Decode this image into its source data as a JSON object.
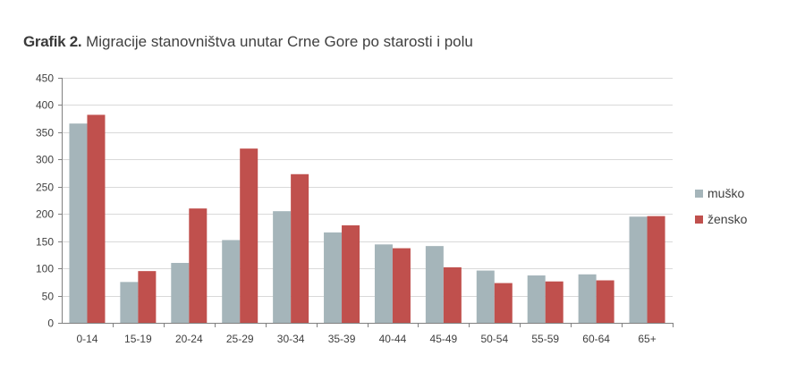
{
  "chart_data": {
    "type": "bar",
    "title_lead": "Grafik 2.",
    "title": "Migracije stanovništva unutar Crne Gore po starosti i polu",
    "xlabel": "",
    "ylabel": "",
    "categories": [
      "0-14",
      "15-19",
      "20-24",
      "25-29",
      "30-34",
      "35-39",
      "40-44",
      "45-49",
      "50-54",
      "55-59",
      "60-64",
      "65+"
    ],
    "series": [
      {
        "name": "muško",
        "color": "#a5b5ba",
        "values": [
          366,
          75,
          110,
          152,
          205,
          166,
          144,
          141,
          96,
          87,
          89,
          195
        ]
      },
      {
        "name": "žensko",
        "color": "#c0504d",
        "values": [
          382,
          95,
          210,
          320,
          273,
          179,
          137,
          102,
          73,
          76,
          78,
          196
        ]
      }
    ],
    "ylim": [
      0,
      450
    ],
    "yticks": [
      0,
      50,
      100,
      150,
      200,
      250,
      300,
      350,
      400,
      450
    ],
    "grid": true,
    "legend": "right"
  }
}
